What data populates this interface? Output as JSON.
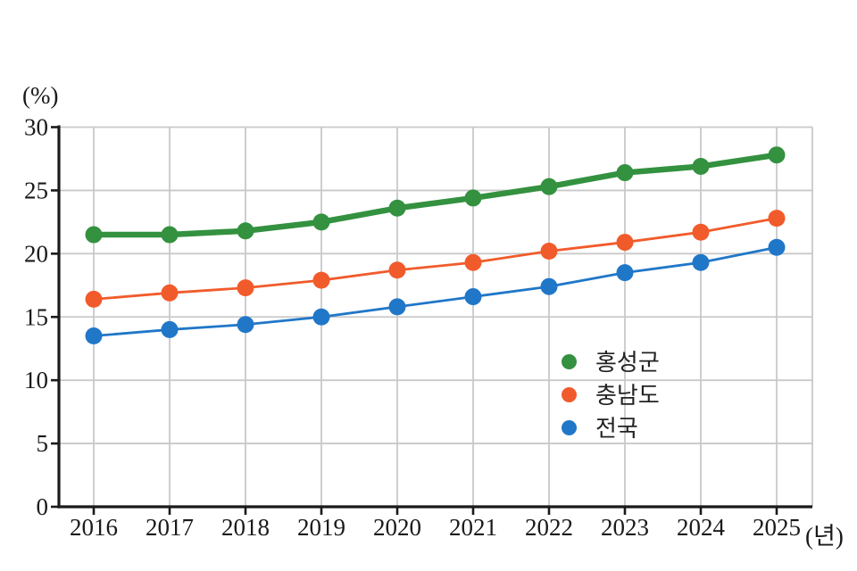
{
  "chart_data": {
    "type": "line",
    "title": "",
    "xlabel": "(년)",
    "ylabel": "(%)",
    "x": [
      2016,
      2017,
      2018,
      2019,
      2020,
      2021,
      2022,
      2023,
      2024,
      2025
    ],
    "x_tick_labels": [
      "2016",
      "2017",
      "2018",
      "2019",
      "2020",
      "2021",
      "2022",
      "2023",
      "2024",
      "2025"
    ],
    "ylim": [
      0,
      30
    ],
    "y_ticks": [
      0,
      5,
      10,
      15,
      20,
      25,
      30
    ],
    "grid": true,
    "legend_position": "center-right",
    "grid_color": "#c9c9c9",
    "axis_color": "#1a1a1a",
    "text_color": "#1a1a1a",
    "series": [
      {
        "name": "홍성군",
        "color": "#33913f",
        "line_width": 6.5,
        "marker_radius": 9.5,
        "values": [
          21.5,
          21.5,
          21.8,
          22.5,
          23.6,
          24.4,
          25.3,
          26.4,
          26.9,
          27.8
        ]
      },
      {
        "name": "충남도",
        "color": "#f15b2b",
        "line_width": 2.8,
        "marker_radius": 9.5,
        "values": [
          16.4,
          16.9,
          17.3,
          17.9,
          18.7,
          19.3,
          20.2,
          20.9,
          21.7,
          22.8
        ]
      },
      {
        "name": "전국",
        "color": "#2077c8",
        "line_width": 2.8,
        "marker_radius": 9.5,
        "values": [
          13.5,
          14.0,
          14.4,
          15.0,
          15.8,
          16.6,
          17.4,
          18.5,
          19.3,
          20.5
        ]
      }
    ]
  }
}
